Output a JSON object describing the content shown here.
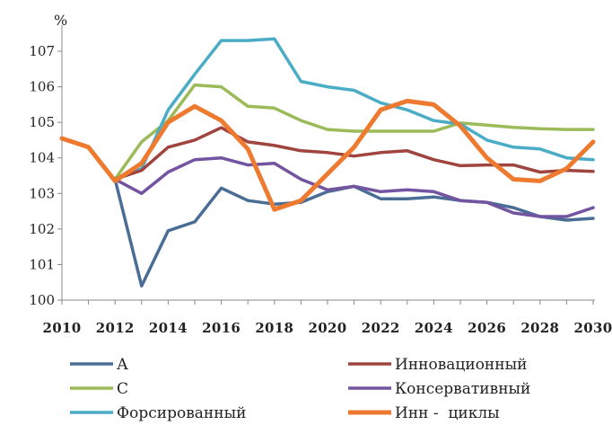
{
  "chart_data": {
    "type": "line",
    "title": "",
    "ylabel": "%",
    "xlabel": "",
    "ylim": [
      100,
      107.5
    ],
    "yticks": [
      100,
      101,
      102,
      103,
      104,
      105,
      106,
      107
    ],
    "xticks": [
      2010,
      2012,
      2014,
      2016,
      2018,
      2020,
      2022,
      2024,
      2026,
      2028,
      2030
    ],
    "x": [
      2010,
      2011,
      2012,
      2013,
      2014,
      2015,
      2016,
      2017,
      2018,
      2019,
      2020,
      2021,
      2022,
      2023,
      2024,
      2025,
      2026,
      2027,
      2028,
      2029,
      2030
    ],
    "grid": false,
    "legend_position": "bottom",
    "series": [
      {
        "name": "А",
        "color": "#4a6d96",
        "values": [
          null,
          null,
          103.4,
          100.4,
          101.95,
          102.2,
          103.15,
          102.8,
          102.7,
          102.75,
          103.05,
          103.2,
          102.85,
          102.85,
          102.9,
          102.8,
          102.75,
          102.6,
          102.35,
          102.25,
          102.3
        ]
      },
      {
        "name": "С",
        "color": "#9bbb59",
        "values": [
          null,
          null,
          103.4,
          104.45,
          105.05,
          106.05,
          106.0,
          105.45,
          105.4,
          105.05,
          104.8,
          104.75,
          104.75,
          104.75,
          104.75,
          104.98,
          104.92,
          104.86,
          104.82,
          104.8,
          104.8
        ]
      },
      {
        "name": "Форсированный",
        "color": "#4bacc6",
        "values": [
          null,
          null,
          103.4,
          103.7,
          105.35,
          106.35,
          107.3,
          107.3,
          107.35,
          106.15,
          106.0,
          105.9,
          105.55,
          105.35,
          105.05,
          104.95,
          104.5,
          104.3,
          104.25,
          104.0,
          103.95
        ]
      },
      {
        "name": "Инновационный",
        "color": "#a0443f",
        "values": [
          null,
          null,
          103.4,
          103.65,
          104.3,
          104.5,
          104.85,
          104.45,
          104.35,
          104.2,
          104.15,
          104.05,
          104.15,
          104.2,
          103.95,
          103.78,
          103.8,
          103.8,
          103.6,
          103.65,
          103.62
        ]
      },
      {
        "name": "Консервативный",
        "color": "#7354a0",
        "values": [
          null,
          null,
          103.4,
          103.0,
          103.6,
          103.95,
          104.0,
          103.8,
          103.85,
          103.4,
          103.1,
          103.2,
          103.05,
          103.1,
          103.05,
          102.8,
          102.75,
          102.45,
          102.35,
          102.35,
          102.6
        ]
      },
      {
        "name": "Инн -  циклы",
        "color": "#ee7a30",
        "values": [
          104.55,
          104.3,
          103.35,
          103.85,
          105.0,
          105.45,
          105.05,
          104.25,
          102.55,
          102.8,
          103.55,
          104.3,
          105.35,
          105.6,
          105.5,
          104.9,
          104.0,
          103.4,
          103.35,
          103.7,
          104.45
        ]
      }
    ],
    "legend": {
      "entries": [
        "А",
        "Инновационный",
        "С",
        "Консервативный",
        "Форсированный",
        "Инн -  циклы"
      ]
    }
  }
}
